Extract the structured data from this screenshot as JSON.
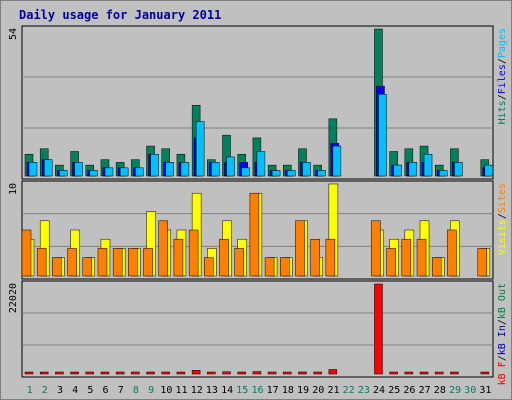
{
  "title": "Daily usage for January 2011",
  "colors": {
    "hits": "#00805c",
    "files": "#0000ff",
    "pages": "#00c0ff",
    "visits": "#ffff00",
    "sites": "#ff8000",
    "kb_in": "#0000a0",
    "kb_out": "#008040",
    "kb_f": "#ff0000",
    "weekend_label": "#00805c",
    "weekday_label": "#00805c",
    "title": "#0000a0"
  },
  "chart_data": [
    {
      "type": "bar",
      "name": "hits-files-pages",
      "ymax_label": "54",
      "ylim": [
        0,
        54
      ],
      "legend": [
        {
          "label": "Hits",
          "color": "#00805c"
        },
        {
          "label": "/",
          "color": "#000000"
        },
        {
          "label": "Files",
          "color": "#0000ff"
        },
        {
          "label": "/",
          "color": "#000000"
        },
        {
          "label": "Pages",
          "color": "#00c0ff"
        }
      ],
      "grid": true,
      "series": [
        {
          "name": "Hits",
          "values": [
            8,
            10,
            4,
            9,
            4,
            6,
            5,
            6,
            11,
            10,
            8,
            26,
            6,
            15,
            8,
            14,
            4,
            4,
            10,
            4,
            21,
            0,
            0,
            54,
            9,
            10,
            11,
            4,
            10,
            0,
            6
          ]
        },
        {
          "name": "Files",
          "values": [
            5,
            6,
            2,
            5,
            2,
            3,
            3,
            3,
            8,
            5,
            5,
            14,
            5,
            5,
            5,
            5,
            2,
            2,
            5,
            2,
            12,
            0,
            0,
            33,
            4,
            5,
            5,
            2,
            5,
            0,
            3
          ]
        },
        {
          "name": "Pages",
          "values": [
            5,
            6,
            2,
            5,
            2,
            3,
            3,
            3,
            8,
            5,
            5,
            20,
            5,
            7,
            3,
            9,
            2,
            2,
            5,
            2,
            11,
            0,
            0,
            30,
            4,
            5,
            8,
            2,
            5,
            0,
            4
          ]
        }
      ]
    },
    {
      "type": "bar",
      "name": "visits-sites",
      "ymax_label": "10",
      "ylim": [
        0,
        10
      ],
      "legend": [
        {
          "label": "Visits",
          "color": "#ffff00"
        },
        {
          "label": "/",
          "color": "#000000"
        },
        {
          "label": "Sites",
          "color": "#ff8000"
        }
      ],
      "grid": true,
      "series": [
        {
          "name": "Visits",
          "values": [
            4,
            6,
            2,
            5,
            2,
            4,
            3,
            3,
            7,
            5,
            5,
            9,
            3,
            6,
            4,
            9,
            2,
            2,
            6,
            2,
            10,
            0,
            0,
            5,
            4,
            5,
            6,
            2,
            6,
            0,
            3
          ]
        },
        {
          "name": "Sites",
          "values": [
            5,
            3,
            2,
            3,
            2,
            3,
            3,
            3,
            3,
            6,
            4,
            5,
            2,
            4,
            3,
            9,
            2,
            2,
            6,
            4,
            4,
            0,
            0,
            6,
            3,
            4,
            4,
            2,
            5,
            0,
            3
          ]
        }
      ]
    },
    {
      "type": "bar",
      "name": "kb",
      "ymax_label": "22020",
      "ylim": [
        0,
        22020
      ],
      "legend": [
        {
          "label": "kB F",
          "color": "#ff0000"
        },
        {
          "label": "/",
          "color": "#000000"
        },
        {
          "label": "kB In",
          "color": "#0000a0"
        },
        {
          "label": "/",
          "color": "#000000"
        },
        {
          "label": "kB Out",
          "color": "#008040"
        }
      ],
      "grid": true,
      "series": [
        {
          "name": "kB F",
          "values": [
            250,
            350,
            200,
            400,
            200,
            300,
            250,
            300,
            400,
            300,
            300,
            900,
            300,
            550,
            300,
            600,
            250,
            250,
            500,
            200,
            1100,
            0,
            0,
            22020,
            300,
            350,
            450,
            250,
            350,
            0,
            300
          ]
        }
      ]
    }
  ],
  "days": [
    "1",
    "2",
    "3",
    "4",
    "5",
    "6",
    "7",
    "8",
    "9",
    "10",
    "11",
    "12",
    "13",
    "14",
    "15",
    "16",
    "17",
    "18",
    "19",
    "20",
    "21",
    "22",
    "23",
    "24",
    "25",
    "26",
    "27",
    "28",
    "29",
    "30",
    "31"
  ]
}
